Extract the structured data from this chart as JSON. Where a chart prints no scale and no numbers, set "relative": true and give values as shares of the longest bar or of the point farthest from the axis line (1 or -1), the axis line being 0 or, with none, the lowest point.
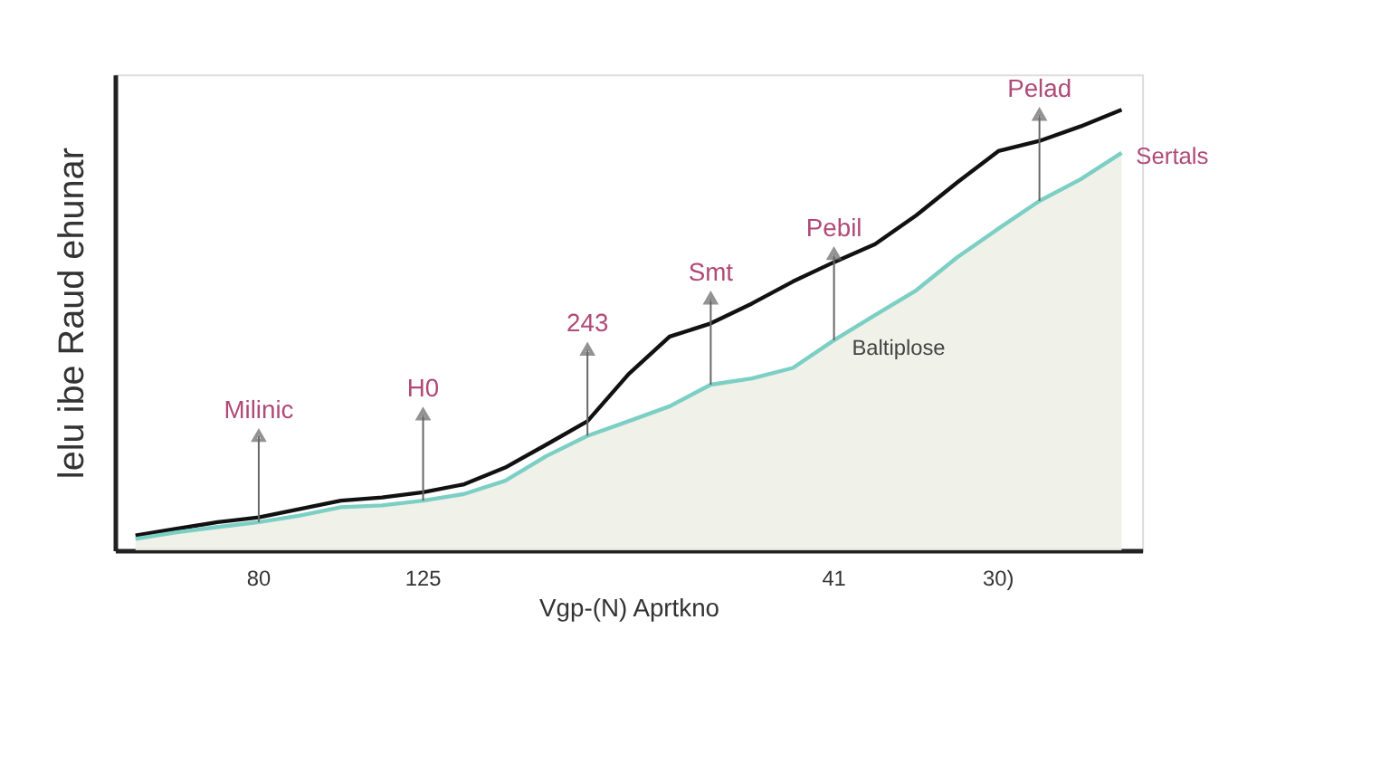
{
  "chart_data": {
    "type": "line",
    "relative": true,
    "xlabel": "Vgp-(N) Aprtkno",
    "ylabel": "lelu ibe Raud ehunar",
    "categories": [
      null,
      null,
      null,
      "80",
      null,
      null,
      null,
      "125",
      null,
      null,
      null,
      null,
      null,
      null,
      null,
      null,
      null,
      "41",
      null,
      null,
      null,
      "30)",
      null,
      null,
      null
    ],
    "tick_labels": "x",
    "grid": false,
    "legend": false,
    "marker": "none",
    "line_style": "solid",
    "series": [
      {
        "color": "#111111",
        "values": [
          0.034,
          0.049,
          0.064,
          0.075,
          0.094,
          0.113,
          0.12,
          0.132,
          0.15,
          0.188,
          0.24,
          0.293,
          0.4,
          0.485,
          0.515,
          0.56,
          0.61,
          0.654,
          0.695,
          0.76,
          0.835,
          0.906,
          0.929,
          0.962,
          1.0
        ]
      },
      {
        "type": "area",
        "name": "Sertals",
        "color": "#7ccfc4",
        "values": [
          0.026,
          0.041,
          0.053,
          0.064,
          0.079,
          0.098,
          0.102,
          0.113,
          0.128,
          0.158,
          0.214,
          0.26,
          0.293,
          0.327,
          0.376,
          0.39,
          0.414,
          0.477,
          0.534,
          0.59,
          0.665,
          0.73,
          0.793,
          0.842,
          0.902
        ]
      }
    ],
    "annotations": [
      {
        "text": "Milinic",
        "x": "80",
        "y": 0.064
      },
      {
        "text": "H0",
        "x": "125",
        "y": 0.113
      },
      {
        "text": "243",
        "y": 0.26
      },
      {
        "text": "Smt",
        "y": 0.376
      },
      {
        "text": "Pebil",
        "x": "41",
        "y": 0.477
      },
      {
        "text": "Baltiplose",
        "x": "41",
        "y": 0.477
      },
      {
        "text": "Pelad",
        "y": 0.793
      }
    ]
  }
}
